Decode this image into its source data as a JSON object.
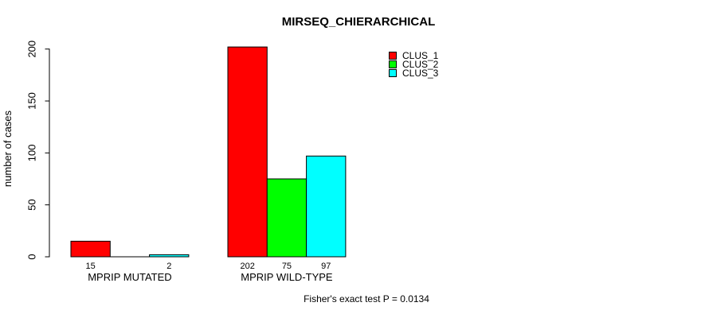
{
  "chart_data": {
    "type": "bar",
    "title": "MIRSEQ_CHIERARCHICAL",
    "ylabel": "number of cases",
    "xlabel": "",
    "categories": [
      "MPRIP MUTATED",
      "MPRIP WILD-TYPE"
    ],
    "series": [
      {
        "name": "CLUS_1",
        "color": "#ff0000",
        "values": [
          15,
          202
        ]
      },
      {
        "name": "CLUS_2",
        "color": "#00ff00",
        "values": [
          0,
          75
        ]
      },
      {
        "name": "CLUS_3",
        "color": "#00ffff",
        "values": [
          2,
          97
        ]
      }
    ],
    "bar_value_labels": [
      [
        "15",
        "",
        "2"
      ],
      [
        "202",
        "75",
        "97"
      ]
    ],
    "yticks": [
      0,
      50,
      100,
      150,
      200
    ],
    "ylim": [
      0,
      210
    ],
    "grid": false,
    "bar_border_color": "#000000",
    "axis_color": "#000000",
    "legend_position": "top-right",
    "legend_border": false,
    "annotation": "Fisher's exact test P = 0.0134"
  }
}
